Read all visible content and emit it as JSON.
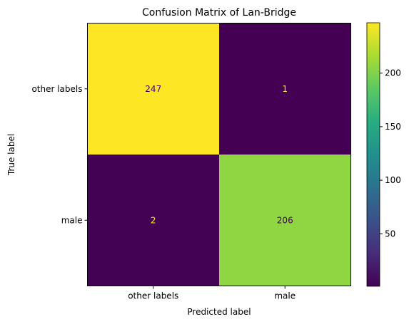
{
  "chart_data": {
    "type": "heatmap",
    "title": "Confusion Matrix of Lan-Bridge",
    "xlabel": "Predicted label",
    "ylabel": "True label",
    "x_categories": [
      "other labels",
      "male"
    ],
    "y_categories": [
      "other labels",
      "male"
    ],
    "values": [
      [
        247,
        1
      ],
      [
        2,
        206
      ]
    ],
    "colormap": "viridis",
    "color_range": [
      1,
      247
    ],
    "colorbar_ticks": [
      50,
      100,
      150,
      200
    ],
    "text_color_light": "#fde725",
    "text_color_dark": "#440154"
  }
}
